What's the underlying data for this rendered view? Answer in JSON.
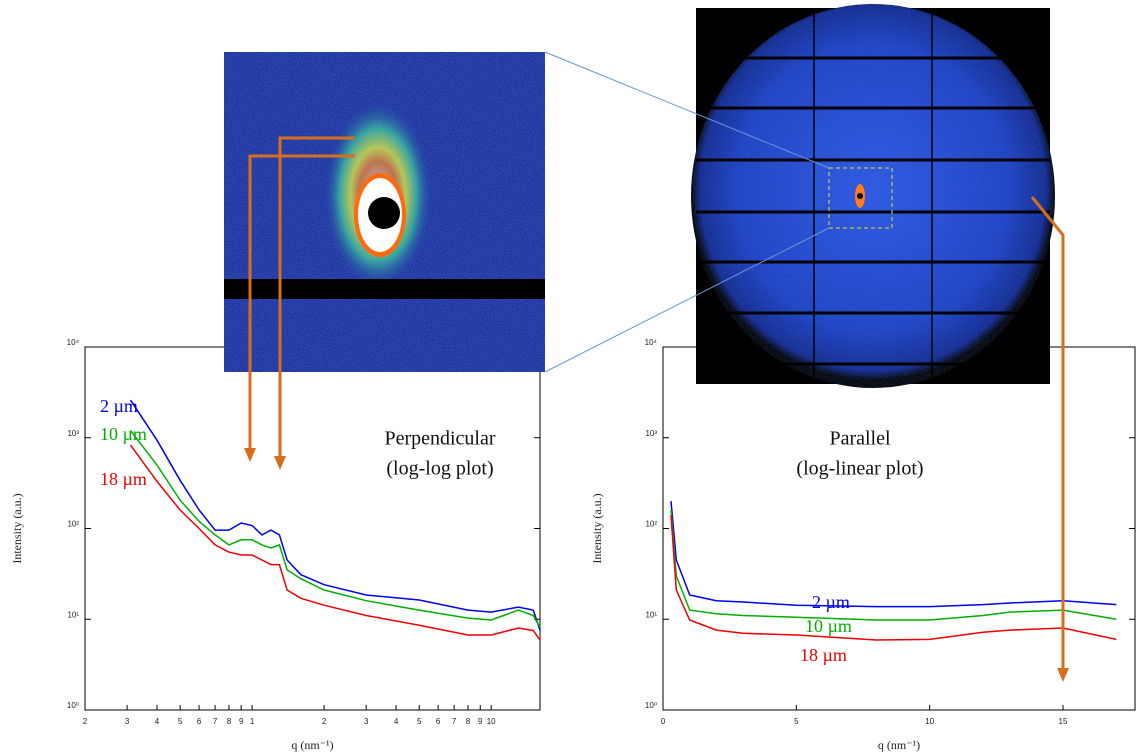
{
  "chart_data": [
    {
      "type": "line",
      "title": "Perpendicular",
      "subtitle": "(log-log plot)",
      "xlabel": "q (nm⁻¹)",
      "ylabel": "Intensity (a.u.)",
      "xscale": "log",
      "yscale": "log",
      "xlim": [
        0.2,
        16
      ],
      "ylim": [
        1,
        10000
      ],
      "xticks": [
        {
          "value": 0.2,
          "label": "2"
        },
        {
          "value": 0.3,
          "label": "3"
        },
        {
          "value": 0.4,
          "label": "4"
        },
        {
          "value": 0.5,
          "label": "5"
        },
        {
          "value": 0.6,
          "label": "6"
        },
        {
          "value": 0.7,
          "label": "7"
        },
        {
          "value": 0.8,
          "label": "8"
        },
        {
          "value": 0.9,
          "label": "9"
        },
        1,
        2,
        3,
        4,
        5,
        6,
        7,
        8,
        9,
        10
      ],
      "yticks": [
        {
          "value": 1,
          "label": "10⁰"
        },
        {
          "value": 10,
          "label": "10¹"
        },
        {
          "value": 100,
          "label": "10²"
        },
        {
          "value": 1000,
          "label": "10³"
        },
        {
          "value": 10000,
          "label": "10⁴"
        }
      ],
      "x": [
        0.31,
        0.4,
        0.5,
        0.6,
        0.7,
        0.8,
        0.9,
        1,
        1.1,
        1.2,
        1.3,
        1.4,
        1.6,
        2,
        3,
        5,
        8,
        10,
        13,
        15,
        16
      ],
      "series": [
        {
          "name": "2 µm",
          "color": "#0000ee",
          "values": [
            2600,
            940,
            340,
            160,
            96,
            96,
            115,
            108,
            85,
            96,
            85,
            45,
            31,
            24,
            18.5,
            16.3,
            12.6,
            12,
            13.6,
            12.6,
            7.6
          ]
        },
        {
          "name": "10 µm",
          "color": "#00b000",
          "values": [
            1200,
            500,
            205,
            120,
            85,
            66,
            75,
            75,
            66,
            61,
            66,
            35,
            28,
            21,
            16,
            12.6,
            10.3,
            9.8,
            12.6,
            11,
            8.2
          ]
        },
        {
          "name": "18 µm",
          "color": "#ee0000",
          "values": [
            830,
            330,
            160,
            100,
            66,
            55,
            51,
            51,
            45,
            40,
            40,
            21,
            17,
            14.3,
            11,
            8.6,
            6.7,
            6.7,
            8,
            7.5,
            5.9
          ]
        }
      ]
    },
    {
      "type": "line",
      "title": "Parallel",
      "subtitle": "(log-linear plot)",
      "xlabel": "q (nm⁻¹)",
      "ylabel": "Intensity (a.u.)",
      "xscale": "linear",
      "yscale": "log",
      "xlim": [
        0,
        17.7
      ],
      "ylim": [
        1,
        10000
      ],
      "xticks": [
        0,
        5,
        10,
        15
      ],
      "yticks": [
        {
          "value": 1,
          "label": "10⁰"
        },
        {
          "value": 10,
          "label": "10¹"
        },
        {
          "value": 100,
          "label": "10²"
        },
        {
          "value": 1000,
          "label": "10³"
        },
        {
          "value": 10000,
          "label": "10⁴"
        }
      ],
      "x": [
        0.3,
        0.5,
        1,
        2,
        3,
        5,
        8,
        10,
        12,
        13,
        15,
        17
      ],
      "series": [
        {
          "name": "2 µm",
          "color": "#0000ee",
          "values": [
            200,
            45,
            18.5,
            16,
            15.5,
            14.3,
            13.8,
            13.8,
            14.5,
            15.1,
            16,
            14.5
          ]
        },
        {
          "name": "10 µm",
          "color": "#00b000",
          "values": [
            160,
            30,
            12.6,
            11.5,
            11,
            10.5,
            9.8,
            9.8,
            11,
            12,
            12.6,
            10
          ]
        },
        {
          "name": "18 µm",
          "color": "#ee0000",
          "values": [
            140,
            21,
            9.8,
            7.6,
            7,
            6.7,
            5.9,
            6,
            7.2,
            7.6,
            8,
            6
          ]
        }
      ]
    }
  ]
}
